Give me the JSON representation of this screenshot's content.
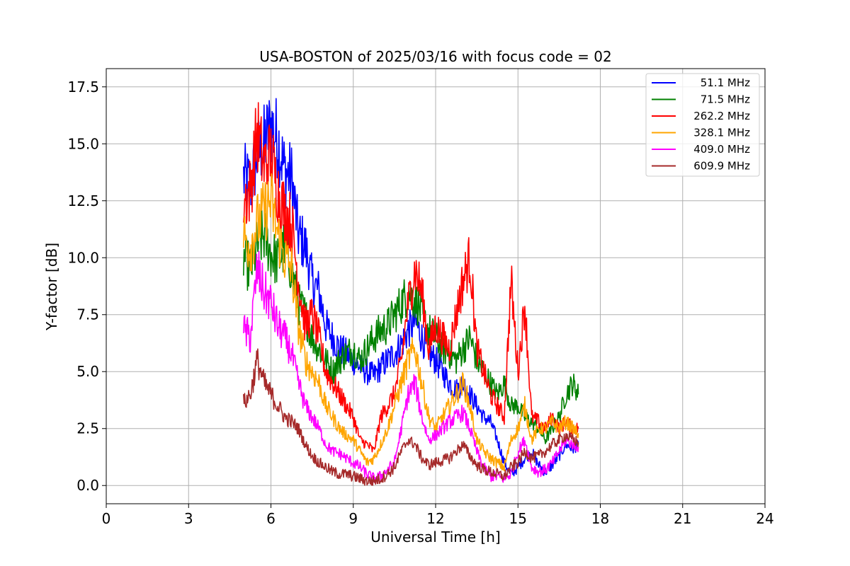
{
  "chart_data": {
    "type": "line",
    "title": "USA-BOSTON of 2025/03/16 with focus code = 02",
    "xlabel": "Universal Time [h]",
    "ylabel": "Y-factor [dB]",
    "xlim": [
      0,
      24
    ],
    "ylim": [
      -0.8,
      18.3
    ],
    "x_ticks": [
      0,
      3,
      6,
      9,
      12,
      15,
      18,
      21,
      24
    ],
    "x_tick_labels": [
      "0",
      "3",
      "6",
      "9",
      "12",
      "15",
      "18",
      "21",
      "24"
    ],
    "y_ticks": [
      0,
      2.5,
      5,
      7.5,
      10,
      12.5,
      15,
      17.5
    ],
    "y_tick_labels": [
      "0.0",
      "2.5",
      "5.0",
      "7.5",
      "10.0",
      "12.5",
      "15.0",
      "17.5"
    ],
    "grid": true,
    "legend_position": "top-right",
    "x": [
      5.0,
      5.25,
      5.5,
      5.75,
      6.0,
      6.25,
      6.5,
      6.75,
      7.0,
      7.25,
      7.5,
      7.75,
      8.0,
      8.25,
      8.5,
      8.75,
      9.0,
      9.25,
      9.5,
      9.75,
      10.0,
      10.25,
      10.5,
      10.75,
      11.0,
      11.25,
      11.5,
      11.75,
      12.0,
      12.25,
      12.5,
      12.75,
      13.0,
      13.25,
      13.5,
      13.75,
      14.0,
      14.25,
      14.5,
      14.75,
      15.0,
      15.25,
      15.5,
      15.75,
      16.0,
      16.25,
      16.5,
      16.75,
      17.0,
      17.2
    ],
    "series": [
      {
        "name": "51.1 MHz",
        "color": "#0000ff",
        "values": [
          13.5,
          13.2,
          14.5,
          15.0,
          15.8,
          15.2,
          13.8,
          13.5,
          11.0,
          10.5,
          9.0,
          8.5,
          7.0,
          6.5,
          6.0,
          5.8,
          5.5,
          5.2,
          5.0,
          4.8,
          5.2,
          5.5,
          5.8,
          6.2,
          6.8,
          7.2,
          6.5,
          5.8,
          5.5,
          5.0,
          4.5,
          4.2,
          4.5,
          4.0,
          3.5,
          3.0,
          2.8,
          2.0,
          1.0,
          0.5,
          0.8,
          1.2,
          1.5,
          0.9,
          0.6,
          0.9,
          1.3,
          1.8,
          1.6,
          1.8
        ]
      },
      {
        "name": "71.5 MHz",
        "color": "#008000",
        "values": [
          10.0,
          9.5,
          10.5,
          11.0,
          10.2,
          9.8,
          10.5,
          9.5,
          8.0,
          7.5,
          6.5,
          6.0,
          5.5,
          5.0,
          5.5,
          5.8,
          6.0,
          5.5,
          6.0,
          6.5,
          6.8,
          7.0,
          7.5,
          8.0,
          8.5,
          8.2,
          7.5,
          6.8,
          6.5,
          6.0,
          5.8,
          5.5,
          6.0,
          6.5,
          5.5,
          5.0,
          4.5,
          4.0,
          4.5,
          3.5,
          3.5,
          3.0,
          2.8,
          2.5,
          2.0,
          2.5,
          3.0,
          4.0,
          4.5,
          4.0
        ]
      },
      {
        "name": "262.2 MHz",
        "color": "#ff0000",
        "values": [
          12.5,
          13.0,
          15.5,
          14.0,
          14.5,
          13.0,
          12.0,
          11.5,
          9.0,
          7.0,
          7.5,
          6.5,
          5.0,
          4.5,
          4.0,
          3.5,
          3.0,
          2.0,
          1.8,
          1.5,
          3.0,
          3.5,
          4.0,
          5.5,
          8.0,
          9.5,
          8.5,
          6.0,
          7.0,
          6.5,
          6.0,
          7.5,
          9.0,
          10.0,
          6.0,
          5.0,
          4.0,
          3.5,
          3.0,
          9.0,
          5.0,
          8.0,
          3.0,
          2.8,
          2.5,
          3.0,
          2.5,
          2.8,
          2.5,
          2.5
        ]
      },
      {
        "name": "328.1 MHz",
        "color": "#ffa500",
        "values": [
          11.0,
          10.5,
          11.5,
          12.0,
          12.5,
          11.0,
          10.0,
          9.5,
          7.0,
          5.5,
          5.0,
          4.5,
          3.5,
          3.0,
          2.5,
          2.2,
          2.0,
          1.5,
          1.0,
          1.2,
          1.8,
          2.5,
          3.5,
          4.5,
          5.5,
          6.0,
          4.5,
          3.0,
          2.5,
          3.0,
          3.5,
          4.0,
          4.5,
          3.5,
          2.0,
          1.5,
          1.2,
          1.0,
          0.8,
          2.0,
          2.5,
          3.5,
          2.0,
          2.5,
          2.5,
          2.8,
          2.5,
          2.8,
          2.5,
          2.3
        ]
      },
      {
        "name": "409.0 MHz",
        "color": "#ff00ff",
        "values": [
          6.8,
          6.5,
          9.5,
          8.5,
          8.0,
          7.0,
          6.5,
          5.8,
          4.5,
          3.5,
          3.0,
          2.5,
          1.8,
          1.5,
          1.4,
          1.2,
          1.0,
          0.8,
          0.5,
          0.3,
          0.4,
          0.7,
          1.0,
          2.5,
          4.0,
          4.5,
          3.0,
          2.0,
          2.2,
          2.5,
          2.8,
          3.0,
          3.2,
          2.5,
          1.5,
          0.8,
          0.4,
          0.4,
          0.3,
          0.5,
          1.5,
          2.0,
          0.8,
          0.6,
          0.7,
          1.0,
          1.5,
          2.0,
          1.8,
          1.7
        ]
      },
      {
        "name": "609.9 MHz",
        "color": "#a52a2a",
        "values": [
          3.6,
          4.0,
          5.5,
          4.5,
          4.0,
          3.5,
          3.0,
          2.8,
          2.5,
          1.8,
          1.3,
          1.0,
          0.8,
          0.6,
          0.5,
          0.5,
          0.4,
          0.3,
          0.2,
          0.2,
          0.3,
          0.5,
          0.8,
          1.5,
          2.0,
          1.8,
          1.2,
          0.9,
          1.0,
          1.1,
          1.2,
          1.5,
          1.8,
          1.3,
          0.9,
          0.7,
          0.6,
          0.5,
          0.4,
          0.8,
          1.0,
          1.5,
          1.2,
          1.3,
          1.5,
          1.8,
          2.0,
          2.2,
          2.0,
          1.9
        ]
      }
    ]
  }
}
